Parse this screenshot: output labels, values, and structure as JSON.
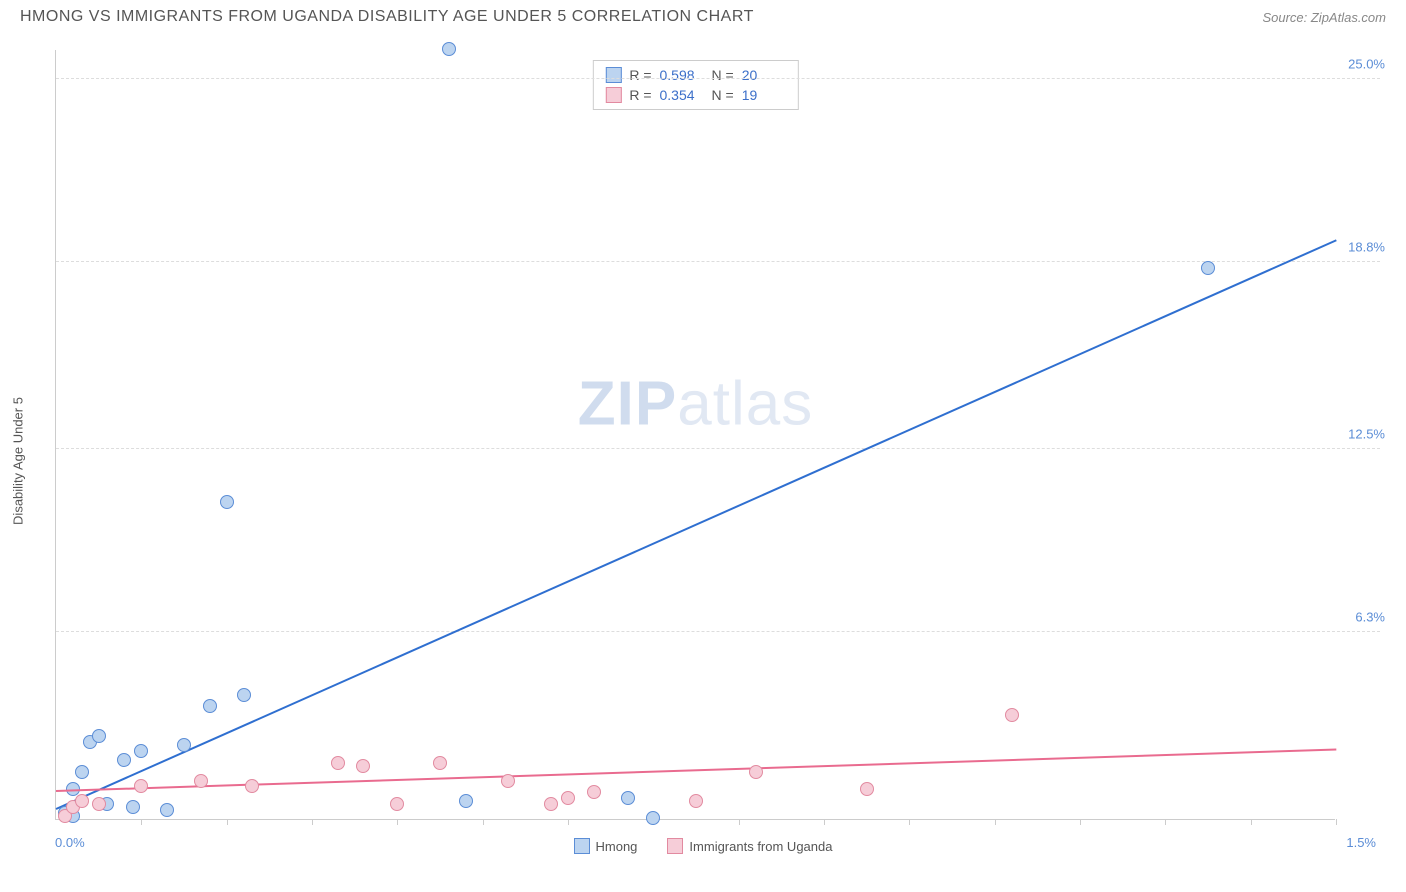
{
  "header": {
    "title": "HMONG VS IMMIGRANTS FROM UGANDA DISABILITY AGE UNDER 5 CORRELATION CHART",
    "source_prefix": "Source: ",
    "source_link": "ZipAtlas.com"
  },
  "chart": {
    "type": "scatter",
    "ylabel": "Disability Age Under 5",
    "background_color": "#ffffff",
    "grid_color": "#dddddd",
    "axis_color": "#cccccc",
    "xlim": [
      0.0,
      1.5
    ],
    "ylim": [
      0.0,
      26.0
    ],
    "xtick_step": 0.1,
    "xtick_labels": {
      "left": "0.0%",
      "right": "1.5%"
    },
    "yticks": [
      {
        "v": 6.3,
        "label": "6.3%"
      },
      {
        "v": 12.5,
        "label": "12.5%"
      },
      {
        "v": 18.8,
        "label": "18.8%"
      },
      {
        "v": 25.0,
        "label": "25.0%"
      }
    ],
    "tick_label_color": "#5b8dd6",
    "tick_label_fontsize": 13,
    "title_fontsize": 16,
    "marker_size": 14,
    "marker_stroke_width": 1,
    "trend_line_width": 2,
    "series": [
      {
        "name": "Hmong",
        "fill": "#bcd4f0",
        "stroke": "#5b8dd6",
        "line_color": "#2f6fd0",
        "R": "0.598",
        "N": "20",
        "trend": {
          "x1": 0.0,
          "y1": 0.3,
          "x2": 1.5,
          "y2": 19.5
        },
        "points": [
          {
            "x": 0.01,
            "y": 0.2
          },
          {
            "x": 0.02,
            "y": 1.0
          },
          {
            "x": 0.02,
            "y": 0.1
          },
          {
            "x": 0.03,
            "y": 1.6
          },
          {
            "x": 0.04,
            "y": 2.6
          },
          {
            "x": 0.05,
            "y": 2.8
          },
          {
            "x": 0.06,
            "y": 0.5
          },
          {
            "x": 0.08,
            "y": 2.0
          },
          {
            "x": 0.09,
            "y": 0.4
          },
          {
            "x": 0.1,
            "y": 2.3
          },
          {
            "x": 0.13,
            "y": 0.3
          },
          {
            "x": 0.15,
            "y": 2.5
          },
          {
            "x": 0.18,
            "y": 3.8
          },
          {
            "x": 0.2,
            "y": 10.7
          },
          {
            "x": 0.22,
            "y": 4.2
          },
          {
            "x": 0.46,
            "y": 26.0
          },
          {
            "x": 0.48,
            "y": 0.6
          },
          {
            "x": 0.67,
            "y": 0.7
          },
          {
            "x": 0.7,
            "y": 0.05
          },
          {
            "x": 1.35,
            "y": 18.6
          }
        ]
      },
      {
        "name": "Immigrants from Uganda",
        "fill": "#f6cdd8",
        "stroke": "#e28aa0",
        "line_color": "#e96b8f",
        "R": "0.354",
        "N": "19",
        "trend": {
          "x1": 0.0,
          "y1": 0.9,
          "x2": 1.5,
          "y2": 2.3
        },
        "points": [
          {
            "x": 0.01,
            "y": 0.1
          },
          {
            "x": 0.02,
            "y": 0.4
          },
          {
            "x": 0.03,
            "y": 0.6
          },
          {
            "x": 0.05,
            "y": 0.5
          },
          {
            "x": 0.1,
            "y": 1.1
          },
          {
            "x": 0.17,
            "y": 1.3
          },
          {
            "x": 0.23,
            "y": 1.1
          },
          {
            "x": 0.33,
            "y": 1.9
          },
          {
            "x": 0.36,
            "y": 1.8
          },
          {
            "x": 0.4,
            "y": 0.5
          },
          {
            "x": 0.45,
            "y": 1.9
          },
          {
            "x": 0.53,
            "y": 1.3
          },
          {
            "x": 0.58,
            "y": 0.5
          },
          {
            "x": 0.6,
            "y": 0.7
          },
          {
            "x": 0.63,
            "y": 0.9
          },
          {
            "x": 0.75,
            "y": 0.6
          },
          {
            "x": 0.82,
            "y": 1.6
          },
          {
            "x": 0.95,
            "y": 1.0
          },
          {
            "x": 1.12,
            "y": 3.5
          }
        ]
      }
    ],
    "bottom_legend": [
      {
        "label": "Hmong",
        "fill": "#bcd4f0",
        "stroke": "#5b8dd6"
      },
      {
        "label": "Immigrants from Uganda",
        "fill": "#f6cdd8",
        "stroke": "#e28aa0"
      }
    ],
    "top_legend_labels": {
      "R": "R =",
      "N": "N ="
    }
  },
  "watermark": {
    "zip": "ZIP",
    "atlas": "atlas"
  }
}
